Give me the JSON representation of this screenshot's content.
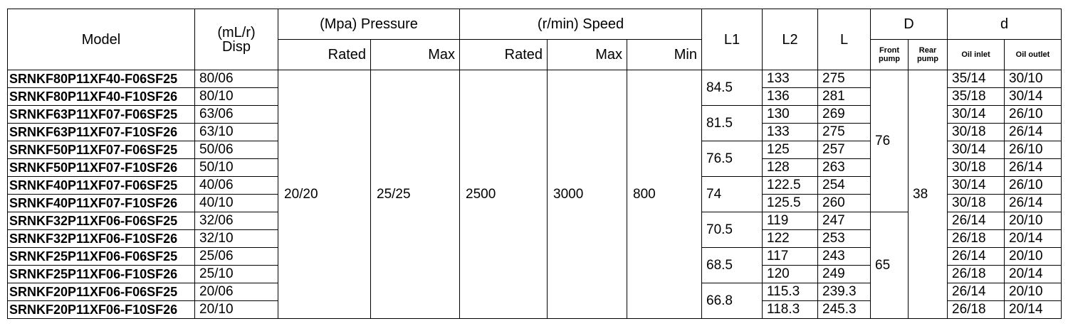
{
  "table": {
    "header": {
      "model": "Model",
      "disp": "(mL/r)\nDisp",
      "pressure": "(Mpa) Pressure",
      "speed": "(r/min) Speed",
      "l1": "L1",
      "l2": "L2",
      "l": "L",
      "D": "D",
      "d": "d",
      "pressure_rated": "Rated",
      "pressure_max": "Max",
      "speed_rated": "Rated",
      "speed_max": "Max",
      "speed_min": "Min",
      "front_pump": "Front\npump",
      "rear_pump": "Rear\npump",
      "oil_inlet": "Oil inlet",
      "oil_outlet": "Oil outlet"
    },
    "merged": {
      "pressure_rated": "20/20",
      "pressure_max": "25/25",
      "speed_rated": "2500",
      "speed_max": "3000",
      "speed_min": "800",
      "rear_pump": "38"
    },
    "l1": [
      "84.5",
      "81.5",
      "76.5",
      "74",
      "70.5",
      "68.5",
      "66.8"
    ],
    "front_pump": [
      "76",
      "65"
    ],
    "rows": [
      [
        "SRNKF80P11XF40-F06SF25",
        "80/06",
        "133",
        "275",
        "35/14",
        "30/10"
      ],
      [
        "SRNKF80P11XF40-F10SF26",
        "80/10",
        "136",
        "281",
        "35/18",
        "30/14"
      ],
      [
        "SRNKF63P11XF07-F06SF25",
        "63/06",
        "130",
        "269",
        "30/14",
        "26/10"
      ],
      [
        "SRNKF63P11XF07-F10SF26",
        "63/10",
        "133",
        "275",
        "30/18",
        "26/14"
      ],
      [
        "SRNKF50P11XF07-F06SF25",
        "50/06",
        "125",
        "257",
        "30/14",
        "26/10"
      ],
      [
        "SRNKF50P11XF07-F10SF26",
        "50/10",
        "128",
        "263",
        "30/18",
        "26/14"
      ],
      [
        "SRNKF40P11XF07-F06SF25",
        "40/06",
        "122.5",
        "254",
        "30/14",
        "26/10"
      ],
      [
        "SRNKF40P11XF07-F10SF26",
        "40/10",
        "125.5",
        "260",
        "30/18",
        "26/14"
      ],
      [
        "SRNKF32P11XF06-F06SF25",
        "32/06",
        "119",
        "247",
        "26/14",
        "20/10"
      ],
      [
        "SRNKF32P11XF06-F10SF26",
        "32/10",
        "122",
        "253",
        "26/18",
        "20/14"
      ],
      [
        "SRNKF25P11XF06-F06SF25",
        "25/06",
        "117",
        "243",
        "26/14",
        "20/10"
      ],
      [
        "SRNKF25P11XF06-F10SF26",
        "25/10",
        "120",
        "249",
        "26/18",
        "20/14"
      ],
      [
        "SRNKF20P11XF06-F06SF25",
        "20/06",
        "115.3",
        "239.3",
        "26/14",
        "20/10"
      ],
      [
        "SRNKF20P11XF06-F10SF26",
        "20/10",
        "118.3",
        "245.3",
        "26/18",
        "20/14"
      ]
    ]
  }
}
